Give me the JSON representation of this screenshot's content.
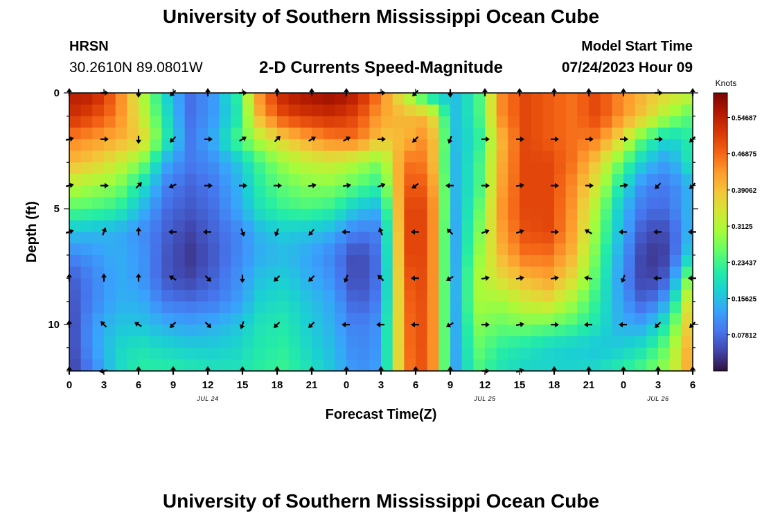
{
  "header": {
    "title": "University of Southern Mississippi Ocean Cube",
    "station": "HRSN",
    "coords": "30.2610N  89.0801W",
    "subtitle": "2-D Currents Speed-Magnitude",
    "model_start_label": "Model Start Time",
    "model_start_value": "07/24/2023 Hour 09"
  },
  "footer": {
    "title": "University of Southern Mississippi Ocean Cube"
  },
  "chart_data": {
    "type": "heatmap",
    "title": "2-D Currents Speed-Magnitude",
    "xlabel": "Forecast Time(Z)",
    "ylabel": "Depth (ft)",
    "x_tick_labels": [
      "0",
      "3",
      "6",
      "9",
      "12",
      "15",
      "18",
      "21",
      "0",
      "3",
      "6",
      "9",
      "12",
      "15",
      "18",
      "21",
      "0",
      "3",
      "6"
    ],
    "x_range_hours": [
      0,
      54
    ],
    "date_labels": [
      {
        "label": "JUL 24",
        "hour": 12
      },
      {
        "label": "JUL 25",
        "hour": 36
      },
      {
        "label": "JUL 26",
        "hour": 51
      }
    ],
    "y_ticks": [
      0,
      5,
      10
    ],
    "y_range_ft": [
      0,
      12
    ],
    "colorbar": {
      "label": "Knots",
      "range": [
        0,
        0.6
      ],
      "tick_values": [
        0.07812,
        0.15625,
        0.23437,
        0.3125,
        0.39062,
        0.46875,
        0.54687
      ],
      "tick_labels": [
        "0.07812",
        "0.15625",
        "0.23437",
        "0.3125",
        "0.39062",
        "0.46875",
        "0.54687"
      ],
      "colors": [
        "#30123b",
        "#4145ab",
        "#4675ed",
        "#39a2fc",
        "#1bcfd4",
        "#24eca6",
        "#61fc6c",
        "#a4fc3b",
        "#d1e834",
        "#f3c63a",
        "#fe9b2d",
        "#f36315",
        "#d93806",
        "#b11901",
        "#7a0402"
      ]
    },
    "arrow_depths_ft": [
      0,
      2,
      4,
      6,
      8,
      10,
      12
    ],
    "arrow_hours": [
      0,
      3,
      6,
      9,
      12,
      15,
      18,
      21,
      24,
      27,
      30,
      33,
      36,
      39,
      42,
      45,
      48,
      51,
      54
    ],
    "speed_knots": [
      [
        0.55,
        0.55,
        0.46,
        0.32,
        0.18,
        0.08,
        0.12,
        0.22,
        0.45,
        0.55,
        0.57,
        0.58,
        0.55,
        0.45,
        0.32,
        0.17,
        0.15,
        0.22,
        0.44,
        0.5,
        0.48,
        0.46,
        0.5,
        0.44,
        0.4,
        0.36,
        0.33
      ],
      [
        0.53,
        0.5,
        0.45,
        0.34,
        0.2,
        0.08,
        0.12,
        0.2,
        0.42,
        0.5,
        0.52,
        0.53,
        0.5,
        0.42,
        0.4,
        0.4,
        0.15,
        0.22,
        0.44,
        0.5,
        0.48,
        0.46,
        0.5,
        0.44,
        0.38,
        0.3,
        0.24
      ],
      [
        0.45,
        0.43,
        0.41,
        0.38,
        0.22,
        0.09,
        0.14,
        0.24,
        0.32,
        0.38,
        0.42,
        0.45,
        0.46,
        0.38,
        0.4,
        0.45,
        0.15,
        0.2,
        0.4,
        0.5,
        0.48,
        0.46,
        0.45,
        0.36,
        0.24,
        0.17,
        0.22
      ],
      [
        0.4,
        0.38,
        0.34,
        0.28,
        0.14,
        0.09,
        0.11,
        0.16,
        0.24,
        0.3,
        0.33,
        0.34,
        0.31,
        0.27,
        0.46,
        0.45,
        0.14,
        0.22,
        0.41,
        0.5,
        0.5,
        0.46,
        0.38,
        0.26,
        0.16,
        0.12,
        0.22
      ],
      [
        0.32,
        0.3,
        0.28,
        0.2,
        0.1,
        0.07,
        0.09,
        0.14,
        0.22,
        0.26,
        0.28,
        0.28,
        0.25,
        0.22,
        0.48,
        0.48,
        0.14,
        0.22,
        0.42,
        0.5,
        0.5,
        0.44,
        0.34,
        0.2,
        0.1,
        0.09,
        0.15
      ],
      [
        0.25,
        0.24,
        0.22,
        0.15,
        0.08,
        0.06,
        0.08,
        0.13,
        0.2,
        0.23,
        0.24,
        0.22,
        0.16,
        0.14,
        0.5,
        0.5,
        0.13,
        0.24,
        0.43,
        0.5,
        0.5,
        0.43,
        0.3,
        0.16,
        0.08,
        0.08,
        0.16
      ],
      [
        0.16,
        0.15,
        0.14,
        0.11,
        0.07,
        0.04,
        0.07,
        0.1,
        0.15,
        0.17,
        0.16,
        0.14,
        0.09,
        0.1,
        0.5,
        0.5,
        0.12,
        0.26,
        0.42,
        0.49,
        0.5,
        0.42,
        0.28,
        0.15,
        0.05,
        0.05,
        0.16
      ],
      [
        0.1,
        0.12,
        0.14,
        0.12,
        0.06,
        0.03,
        0.06,
        0.1,
        0.14,
        0.15,
        0.13,
        0.1,
        0.04,
        0.09,
        0.5,
        0.5,
        0.12,
        0.28,
        0.4,
        0.46,
        0.46,
        0.4,
        0.26,
        0.13,
        0.03,
        0.04,
        0.2
      ],
      [
        0.06,
        0.1,
        0.14,
        0.12,
        0.06,
        0.04,
        0.07,
        0.11,
        0.16,
        0.17,
        0.14,
        0.11,
        0.04,
        0.09,
        0.48,
        0.5,
        0.12,
        0.3,
        0.36,
        0.4,
        0.42,
        0.36,
        0.24,
        0.12,
        0.03,
        0.07,
        0.32
      ],
      [
        0.05,
        0.1,
        0.14,
        0.14,
        0.09,
        0.08,
        0.09,
        0.12,
        0.18,
        0.19,
        0.16,
        0.13,
        0.06,
        0.1,
        0.47,
        0.5,
        0.12,
        0.3,
        0.3,
        0.34,
        0.36,
        0.3,
        0.22,
        0.13,
        0.06,
        0.14,
        0.4
      ],
      [
        0.04,
        0.12,
        0.16,
        0.16,
        0.14,
        0.13,
        0.14,
        0.16,
        0.2,
        0.21,
        0.17,
        0.14,
        0.09,
        0.12,
        0.46,
        0.5,
        0.12,
        0.28,
        0.26,
        0.27,
        0.26,
        0.24,
        0.2,
        0.14,
        0.13,
        0.22,
        0.42
      ],
      [
        0.04,
        0.12,
        0.18,
        0.2,
        0.18,
        0.17,
        0.17,
        0.18,
        0.21,
        0.22,
        0.18,
        0.15,
        0.1,
        0.12,
        0.46,
        0.5,
        0.12,
        0.26,
        0.22,
        0.2,
        0.18,
        0.17,
        0.16,
        0.17,
        0.2,
        0.27,
        0.44
      ],
      [
        0.03,
        0.1,
        0.18,
        0.22,
        0.22,
        0.21,
        0.2,
        0.2,
        0.22,
        0.23,
        0.2,
        0.16,
        0.11,
        0.13,
        0.45,
        0.5,
        0.12,
        0.24,
        0.2,
        0.18,
        0.18,
        0.18,
        0.19,
        0.22,
        0.25,
        0.3,
        0.44
      ]
    ],
    "direction_deg": [
      [
        0,
        90,
        180,
        225,
        0,
        90,
        0,
        0,
        0,
        90,
        225,
        180,
        0,
        0,
        0,
        0,
        0,
        90,
        0
      ],
      [
        75,
        90,
        180,
        225,
        90,
        60,
        45,
        60,
        60,
        90,
        225,
        200,
        90,
        90,
        90,
        90,
        90,
        90,
        225
      ],
      [
        75,
        90,
        45,
        245,
        90,
        90,
        90,
        80,
        80,
        70,
        235,
        270,
        90,
        80,
        90,
        90,
        80,
        225,
        225
      ],
      [
        70,
        20,
        0,
        270,
        270,
        160,
        200,
        220,
        270,
        340,
        270,
        315,
        70,
        70,
        90,
        300,
        270,
        270,
        270
      ],
      [
        0,
        0,
        0,
        300,
        135,
        180,
        225,
        225,
        200,
        315,
        270,
        240,
        80,
        80,
        80,
        280,
        200,
        270,
        270
      ],
      [
        0,
        315,
        300,
        225,
        135,
        200,
        225,
        225,
        270,
        270,
        270,
        240,
        90,
        80,
        90,
        270,
        270,
        225,
        225
      ],
      [
        0,
        260,
        0,
        0,
        0,
        0,
        0,
        0,
        0,
        0,
        0,
        0,
        90,
        70,
        0,
        0,
        0,
        0,
        0
      ]
    ]
  }
}
